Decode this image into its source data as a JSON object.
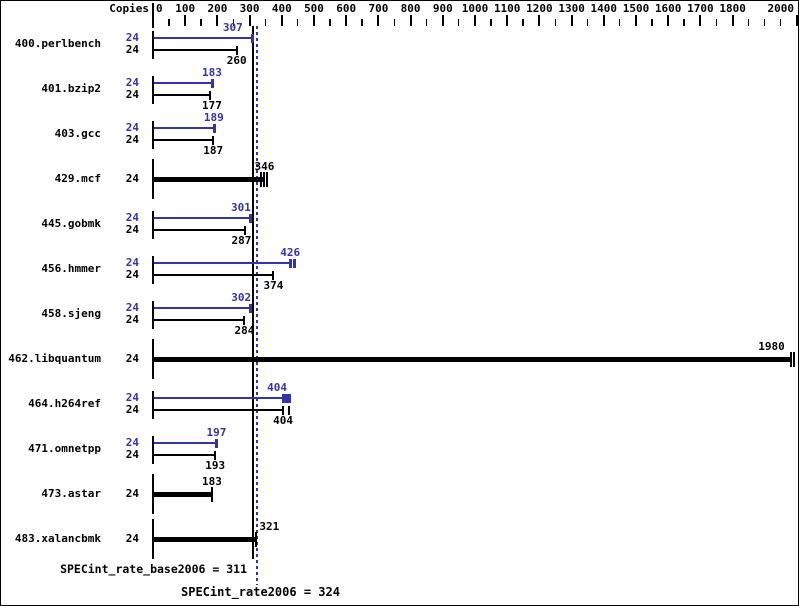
{
  "colors": {
    "peak": "#3333aa",
    "base": "#000000",
    "background": "#ffffff"
  },
  "chart_data": {
    "type": "bar",
    "orientation": "horizontal",
    "xlim": [
      0,
      2000
    ],
    "grid": false,
    "copies_header": "Copies",
    "axis": {
      "minor_step": 50,
      "major_step": 100,
      "label_values": [
        0,
        100,
        200,
        300,
        400,
        500,
        600,
        700,
        800,
        900,
        1000,
        1100,
        1200,
        1300,
        1400,
        1500,
        1600,
        1700,
        1800,
        2000
      ]
    },
    "reference_lines": [
      {
        "name": "SPECint_rate_base2006",
        "value": 311,
        "label": "SPECint_rate_base2006 = 311",
        "style": "solid",
        "color_key": "base"
      },
      {
        "name": "SPECint_rate2006",
        "value": 324,
        "label": "SPECint_rate2006 = 324",
        "style": "dotted",
        "color_key": "peak"
      }
    ],
    "benchmarks": [
      {
        "name": "400.perlbench",
        "bars": [
          {
            "kind": "peak",
            "copies": 24,
            "value": 307,
            "cap_ticks": [
              0
            ],
            "label_dx": -19
          },
          {
            "kind": "base",
            "copies": 24,
            "value": 260,
            "cap_ticks": [
              0
            ],
            "label_dx": 0
          }
        ]
      },
      {
        "name": "401.bzip2",
        "bars": [
          {
            "kind": "peak",
            "copies": 24,
            "value": 183,
            "cap_ticks": [
              0
            ],
            "label_dx": 0
          },
          {
            "kind": "base",
            "copies": 24,
            "value": 177,
            "cap_ticks": [
              0
            ],
            "label_dx": 2
          }
        ]
      },
      {
        "name": "403.gcc",
        "bars": [
          {
            "kind": "peak",
            "copies": 24,
            "value": 189,
            "cap_ticks": [
              0
            ],
            "label_dx": 0
          },
          {
            "kind": "base",
            "copies": 24,
            "value": 187,
            "cap_ticks": [
              0
            ],
            "label_dx": 0
          }
        ]
      },
      {
        "name": "429.mcf",
        "bars": [
          {
            "kind": "single",
            "copies": 24,
            "value": 346,
            "cap_ticks": [
              -3,
              0,
              3
            ],
            "label_dx": 0
          }
        ]
      },
      {
        "name": "445.gobmk",
        "bars": [
          {
            "kind": "peak",
            "copies": 24,
            "value": 301,
            "cap_ticks": [
              0
            ],
            "label_dx": -9
          },
          {
            "kind": "base",
            "copies": 24,
            "value": 287,
            "cap_ticks": [
              0
            ],
            "label_dx": -4
          }
        ]
      },
      {
        "name": "456.hmmer",
        "bars": [
          {
            "kind": "peak",
            "copies": 24,
            "value": 426,
            "cap_ticks": [
              0,
              4
            ],
            "label_dx": 0
          },
          {
            "kind": "base",
            "copies": 24,
            "value": 374,
            "cap_ticks": [
              0
            ],
            "label_dx": 0
          }
        ]
      },
      {
        "name": "458.sjeng",
        "bars": [
          {
            "kind": "peak",
            "copies": 24,
            "value": 302,
            "cap_ticks": [
              0
            ],
            "label_dx": -9
          },
          {
            "kind": "base",
            "copies": 24,
            "value": 284,
            "cap_ticks": [
              0
            ],
            "label_dx": 0
          }
        ]
      },
      {
        "name": "462.libquantum",
        "bars": [
          {
            "kind": "single",
            "copies": 24,
            "value": 1980,
            "cap_ticks": [
              0,
              3
            ],
            "label_dx": -19
          }
        ]
      },
      {
        "name": "464.h264ref",
        "bars": [
          {
            "kind": "peak",
            "copies": 24,
            "value": 404,
            "cap_ticks": [
              0,
              3,
              6
            ],
            "label_dx": -6
          },
          {
            "kind": "base",
            "copies": 24,
            "value": 404,
            "cap_ticks": [
              0,
              6
            ],
            "label_dx": 0
          }
        ]
      },
      {
        "name": "471.omnetpp",
        "bars": [
          {
            "kind": "peak",
            "copies": 24,
            "value": 197,
            "cap_ticks": [
              0
            ],
            "label_dx": 0
          },
          {
            "kind": "base",
            "copies": 24,
            "value": 193,
            "cap_ticks": [
              0
            ],
            "label_dx": 0
          }
        ]
      },
      {
        "name": "473.astar",
        "bars": [
          {
            "kind": "single",
            "copies": 24,
            "value": 183,
            "cap_ticks": [
              0
            ],
            "label_dx": 0
          }
        ]
      },
      {
        "name": "483.xalancbmk",
        "bars": [
          {
            "kind": "single",
            "copies": 24,
            "value": 321,
            "cap_ticks": [
              0
            ],
            "label_dx": 13
          }
        ]
      }
    ]
  }
}
